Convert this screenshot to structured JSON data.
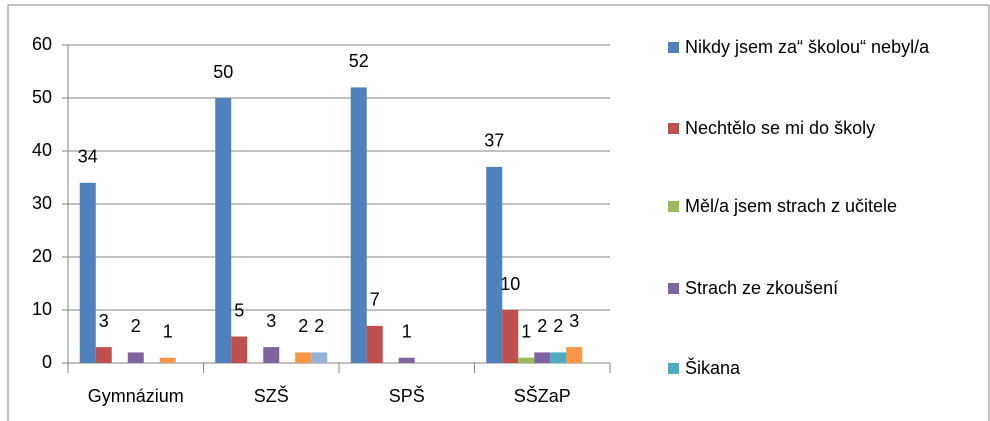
{
  "chart_data": {
    "type": "bar",
    "categories": [
      "Gymnázium",
      "SZŠ",
      "SPŠ",
      "SŠZaP"
    ],
    "series": [
      {
        "name": "Nikdy jsem za“ školou“ nebyl/a",
        "color": "#4f81bd",
        "values": [
          34,
          50,
          52,
          37
        ]
      },
      {
        "name": "Nechtělo se mi do školy",
        "color": "#c0504d",
        "values": [
          3,
          5,
          7,
          10
        ]
      },
      {
        "name": "Měl/a jsem strach z učitele",
        "color": "#9bbb59",
        "values": [
          null,
          null,
          null,
          1
        ]
      },
      {
        "name": "Strach ze zkoušení",
        "color": "#8064a2",
        "values": [
          2,
          3,
          1,
          2
        ]
      },
      {
        "name": "Šikana",
        "color": "#4bacc6",
        "values": [
          null,
          null,
          null,
          2
        ]
      },
      {
        "color": "#f79646",
        "values": [
          1,
          2,
          null,
          3
        ]
      },
      {
        "color": "#95b3d7",
        "values": [
          null,
          2,
          null,
          null
        ]
      }
    ],
    "ylim": [
      0,
      60
    ],
    "yticks": [
      0,
      10,
      20,
      30,
      40,
      50,
      60
    ],
    "grid": true,
    "legend": "right"
  }
}
